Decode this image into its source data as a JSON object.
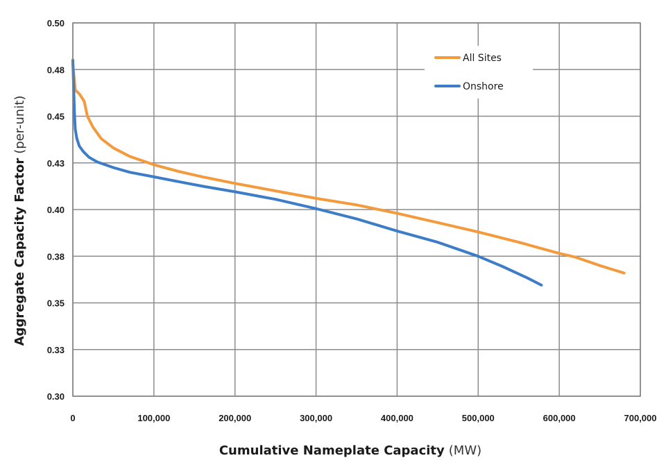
{
  "chart_data": {
    "type": "line",
    "xlabel": "Cumulative Nameplate Capacity",
    "xlabel_unit": "(MW)",
    "ylabel": "Aggregate Capacity Factor",
    "ylabel_unit": "(per-unit)",
    "xlim": [
      0,
      700000
    ],
    "ylim": [
      0.3,
      0.5
    ],
    "x_ticks": [
      0,
      100000,
      200000,
      300000,
      400000,
      500000,
      600000,
      700000
    ],
    "x_tick_labels": [
      "0",
      "100,000",
      "200,000",
      "300,000",
      "400,000",
      "500,000",
      "600,000",
      "700,000"
    ],
    "y_ticks": [
      0.3,
      0.325,
      0.35,
      0.375,
      0.4,
      0.425,
      0.45,
      0.475,
      0.5
    ],
    "y_tick_labels": [
      "0.30",
      "0.33",
      "0.35",
      "0.38",
      "0.40",
      "0.43",
      "0.45",
      "0.48",
      "0.50"
    ],
    "grid": true,
    "legend_position": "top-right",
    "series": [
      {
        "name": "All Sites",
        "color": "#f39a3c",
        "points": [
          [
            0,
            0.478
          ],
          [
            3000,
            0.464
          ],
          [
            8000,
            0.462
          ],
          [
            14000,
            0.458
          ],
          [
            18000,
            0.45
          ],
          [
            25000,
            0.444
          ],
          [
            35000,
            0.438
          ],
          [
            50000,
            0.433
          ],
          [
            70000,
            0.4285
          ],
          [
            100000,
            0.424
          ],
          [
            130000,
            0.4205
          ],
          [
            160000,
            0.4175
          ],
          [
            200000,
            0.414
          ],
          [
            250000,
            0.41
          ],
          [
            300000,
            0.406
          ],
          [
            350000,
            0.4025
          ],
          [
            400000,
            0.398
          ],
          [
            450000,
            0.393
          ],
          [
            500000,
            0.388
          ],
          [
            550000,
            0.3825
          ],
          [
            600000,
            0.3765
          ],
          [
            620000,
            0.3745
          ],
          [
            650000,
            0.37
          ],
          [
            680000,
            0.366
          ]
        ]
      },
      {
        "name": "Onshore",
        "color": "#3d7dc8",
        "points": [
          [
            0,
            0.48
          ],
          [
            1000,
            0.465
          ],
          [
            2000,
            0.452
          ],
          [
            3000,
            0.443
          ],
          [
            5000,
            0.438
          ],
          [
            8000,
            0.434
          ],
          [
            13000,
            0.431
          ],
          [
            20000,
            0.428
          ],
          [
            30000,
            0.4255
          ],
          [
            50000,
            0.4225
          ],
          [
            70000,
            0.42
          ],
          [
            100000,
            0.4175
          ],
          [
            130000,
            0.415
          ],
          [
            160000,
            0.4125
          ],
          [
            200000,
            0.4095
          ],
          [
            250000,
            0.4055
          ],
          [
            300000,
            0.4005
          ],
          [
            350000,
            0.395
          ],
          [
            400000,
            0.3885
          ],
          [
            450000,
            0.3825
          ],
          [
            500000,
            0.375
          ],
          [
            530000,
            0.3695
          ],
          [
            560000,
            0.3635
          ],
          [
            578000,
            0.3595
          ]
        ]
      }
    ]
  }
}
